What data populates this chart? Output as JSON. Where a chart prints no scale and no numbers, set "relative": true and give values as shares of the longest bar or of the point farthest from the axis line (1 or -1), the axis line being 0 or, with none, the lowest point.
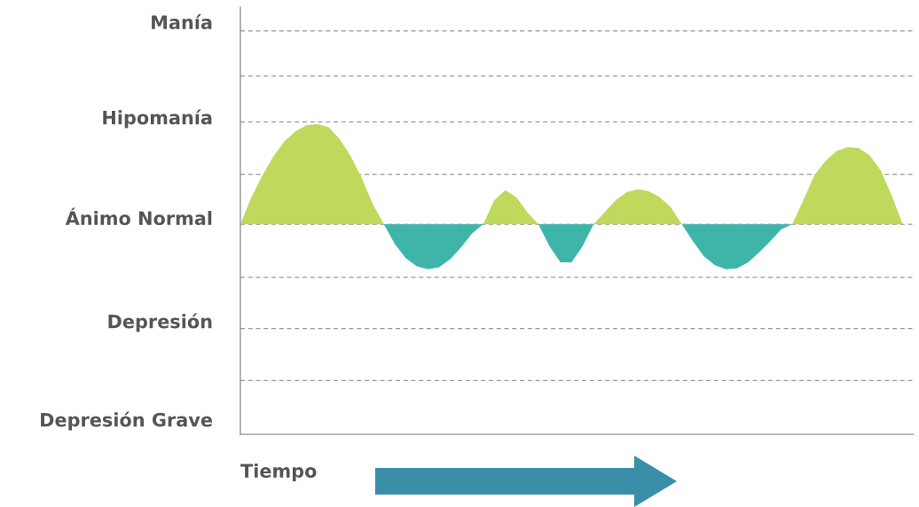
{
  "chart_data": {
    "type": "area",
    "relative": true,
    "categories": [
      null,
      null,
      null,
      null,
      null,
      null,
      null,
      null,
      null,
      null,
      null,
      null,
      null,
      null,
      null,
      null,
      null,
      null,
      null,
      null,
      null,
      null,
      null,
      null,
      null,
      null,
      null,
      null,
      null,
      null,
      null,
      null,
      null,
      null,
      null,
      null,
      null,
      null,
      null,
      null,
      null,
      null,
      null,
      null,
      null,
      null,
      null,
      null,
      null,
      null,
      null,
      null,
      null,
      null,
      null,
      null,
      null,
      null,
      null,
      null,
      null
    ],
    "series": [
      {
        "color": "#bfd95c",
        "values": [
          0,
          0.27,
          0.49,
          0.68,
          0.83,
          0.93,
          0.99,
          1,
          0.97,
          0.85,
          0.68,
          0.46,
          0.2,
          0,
          0,
          0,
          0,
          0,
          0,
          0,
          0,
          0,
          0,
          0.24,
          0.34,
          0.27,
          0.12,
          0,
          0,
          0,
          0,
          0,
          0,
          0.12,
          0.24,
          0.32,
          0.35,
          0.33,
          0.27,
          0.17,
          0,
          0,
          0,
          0,
          0,
          0,
          0,
          0,
          0,
          0,
          0,
          0.24,
          0.49,
          0.63,
          0.73,
          0.77,
          0.76,
          0.69,
          0.54,
          0.29,
          0
        ]
      },
      {
        "color": "#3fb5aa",
        "values": [
          0,
          0,
          0,
          0,
          0,
          0,
          0,
          0,
          0,
          0,
          0,
          0,
          0,
          0,
          -0.2,
          -0.34,
          -0.42,
          -0.45,
          -0.43,
          -0.35,
          -0.23,
          -0.09,
          0,
          0,
          0,
          0,
          0,
          0,
          -0.22,
          -0.38,
          -0.38,
          -0.22,
          0,
          0,
          0,
          0,
          0,
          0,
          0,
          0,
          0,
          -0.17,
          -0.32,
          -0.41,
          -0.45,
          -0.44,
          -0.38,
          -0.28,
          -0.17,
          -0.05,
          0,
          0,
          0,
          0,
          0,
          0,
          0,
          0,
          0,
          0,
          0
        ]
      }
    ],
    "annotations": [
      "Manía",
      "Hipomanía",
      "Ánimo Normal",
      "Depresión",
      "Depresión Grave",
      "Tiempo"
    ],
    "ref_lines": [
      {
        "axis": "y",
        "value": 1.93,
        "color": "#999999",
        "line_style": "dashed"
      },
      {
        "axis": "y",
        "value": 1.48,
        "color": "#999999",
        "line_style": "dashed"
      },
      {
        "axis": "y",
        "value": 1.02,
        "color": "#999999",
        "line_style": "dashed"
      },
      {
        "axis": "y",
        "value": 0.5,
        "color": "#999999",
        "line_style": "dashed"
      },
      {
        "axis": "y",
        "value": 0,
        "color": "#999999",
        "line_style": "dashed"
      },
      {
        "axis": "y",
        "value": -0.53,
        "color": "#999999",
        "line_style": "dashed"
      },
      {
        "axis": "y",
        "value": -1.04,
        "color": "#999999",
        "line_style": "dashed"
      },
      {
        "axis": "y",
        "value": -1.56,
        "color": "#999999",
        "line_style": "dashed"
      }
    ],
    "legend": false
  }
}
